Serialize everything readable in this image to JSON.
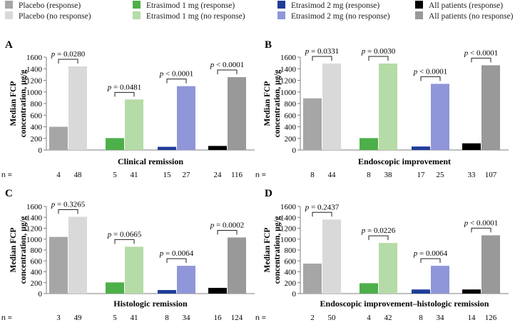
{
  "legend": [
    {
      "label": "Placebo (response)",
      "color": "#a6a6a6"
    },
    {
      "label": "Placebo (no response)",
      "color": "#d9d9d9"
    },
    {
      "label": "Etrasimod 1 mg (response)",
      "color": "#4daf4a"
    },
    {
      "label": "Etrasimod 1 mg (no response)",
      "color": "#b5dba6"
    },
    {
      "label": "Etrasimod 2 mg (response)",
      "color": "#1f3d99"
    },
    {
      "label": "Etrasimod 2 mg (no response)",
      "color": "#8f96d9"
    },
    {
      "label": "All patients (response)",
      "color": "#000000"
    },
    {
      "label": "All patients (no response)",
      "color": "#999999"
    }
  ],
  "n_label": "n =",
  "chart_data": [
    {
      "type": "bar",
      "panel": "A",
      "title": "Clinical remission",
      "ylabel": [
        "Median FCP",
        "concentration, µg/g"
      ],
      "ylim": [
        0,
        1600
      ],
      "yticks": [
        0,
        200,
        400,
        600,
        800,
        1000,
        1200,
        1400,
        1600
      ],
      "groups": [
        {
          "name": "Placebo",
          "values": [
            400,
            1440
          ],
          "n": [
            "4",
            "48"
          ],
          "p": "p = 0.0280"
        },
        {
          "name": "Etrasimod 1 mg",
          "values": [
            205,
            870
          ],
          "n": [
            "5",
            "41"
          ],
          "p": "p = 0.0481"
        },
        {
          "name": "Etrasimod 2 mg",
          "values": [
            55,
            1100
          ],
          "n": [
            "15",
            "27"
          ],
          "p": "p < 0.0001"
        },
        {
          "name": "All patients",
          "values": [
            70,
            1255
          ],
          "n": [
            "24",
            "116"
          ],
          "p": "p < 0.0001"
        }
      ]
    },
    {
      "type": "bar",
      "panel": "B",
      "title": "Endoscopic improvement",
      "ylabel": [
        "Median FCP",
        "concentration, µg/g"
      ],
      "ylim": [
        0,
        1600
      ],
      "yticks": [
        0,
        200,
        400,
        600,
        800,
        1000,
        1200,
        1400,
        1600
      ],
      "groups": [
        {
          "name": "Placebo",
          "values": [
            890,
            1490
          ],
          "n": [
            "8",
            "44"
          ],
          "p": "p = 0.0331"
        },
        {
          "name": "Etrasimod 1 mg",
          "values": [
            205,
            1490
          ],
          "n": [
            "8",
            "38"
          ],
          "p": "p = 0.0030"
        },
        {
          "name": "Etrasimod 2 mg",
          "values": [
            60,
            1140
          ],
          "n": [
            "17",
            "25"
          ],
          "p": "p < 0.0001"
        },
        {
          "name": "All patients",
          "values": [
            115,
            1460
          ],
          "n": [
            "33",
            "107"
          ],
          "p": "p < 0.0001"
        }
      ]
    },
    {
      "type": "bar",
      "panel": "C",
      "title": "Histologic remission",
      "ylabel": [
        "Median FCP",
        "concentration, µg/g"
      ],
      "ylim": [
        0,
        1600
      ],
      "yticks": [
        0,
        200,
        400,
        600,
        800,
        1000,
        1200,
        1400,
        1600
      ],
      "groups": [
        {
          "name": "Placebo",
          "values": [
            1040,
            1410
          ],
          "n": [
            "3",
            "49"
          ],
          "p": "p = 0.3265"
        },
        {
          "name": "Etrasimod 1 mg",
          "values": [
            205,
            860
          ],
          "n": [
            "5",
            "41"
          ],
          "p": "p = 0.0665"
        },
        {
          "name": "Etrasimod 2 mg",
          "values": [
            65,
            510
          ],
          "n": [
            "8",
            "34"
          ],
          "p": "p = 0.0064"
        },
        {
          "name": "All patients",
          "values": [
            105,
            1030
          ],
          "n": [
            "16",
            "124"
          ],
          "p": "p = 0.0002"
        }
      ]
    },
    {
      "type": "bar",
      "panel": "D",
      "title": "Endoscopic improvement–histologic remission",
      "ylabel": [
        "Median FCP",
        "concentration, µg/g"
      ],
      "ylim": [
        0,
        1600
      ],
      "yticks": [
        0,
        200,
        400,
        600,
        800,
        1000,
        1200,
        1400,
        1600
      ],
      "groups": [
        {
          "name": "Placebo",
          "values": [
            550,
            1360
          ],
          "n": [
            "2",
            "50"
          ],
          "p": "p = 0.2437"
        },
        {
          "name": "Etrasimod 1 mg",
          "values": [
            190,
            930
          ],
          "n": [
            "4",
            "42"
          ],
          "p": "p = 0.0226"
        },
        {
          "name": "Etrasimod 2 mg",
          "values": [
            75,
            510
          ],
          "n": [
            "8",
            "34"
          ],
          "p": "p = 0.0064"
        },
        {
          "name": "All patients",
          "values": [
            75,
            1070
          ],
          "n": [
            "14",
            "126"
          ],
          "p": "p < 0.0001"
        }
      ]
    }
  ]
}
